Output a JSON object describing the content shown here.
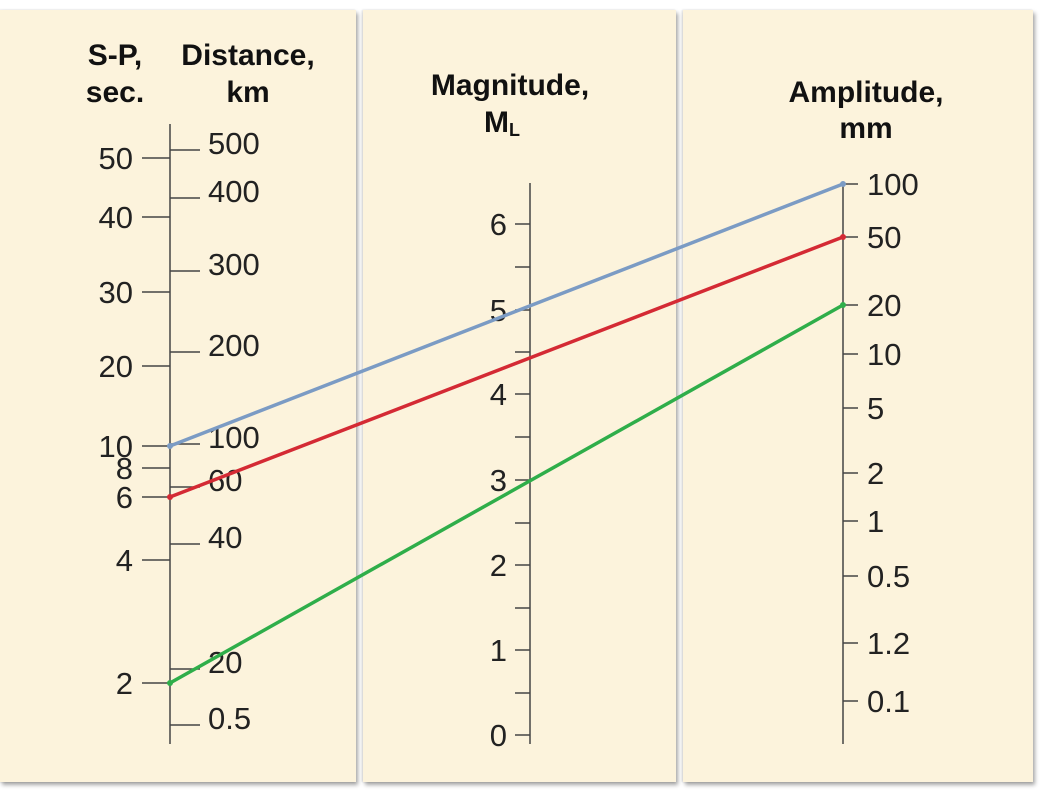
{
  "headers": {
    "sp": [
      "S-P,",
      "sec."
    ],
    "distance": [
      "Distance,",
      "km"
    ],
    "magnitude": [
      "Magnitude,",
      "M",
      "L"
    ],
    "amplitude": [
      "Amplitude,",
      "mm"
    ]
  },
  "scales": {
    "sp": [
      "50",
      "40",
      "30",
      "20",
      "10",
      "8",
      "6",
      "4",
      "2"
    ],
    "distance": [
      "500",
      "400",
      "300",
      "200",
      "100",
      "60",
      "40",
      "20",
      "0.5"
    ],
    "magnitude": [
      "6",
      "5",
      "4",
      "3",
      "2",
      "1",
      "0"
    ],
    "amplitude": [
      "100",
      "50",
      "20",
      "10",
      "5",
      "2",
      "1",
      "0.5",
      "1.2",
      "0.1"
    ]
  },
  "lines": [
    {
      "name": "blue-line",
      "color": "#7b9bc4",
      "sp_sec": 10,
      "amplitude_mm": 100
    },
    {
      "name": "red-line",
      "color": "#d42a34",
      "sp_sec": 6,
      "amplitude_mm": 50
    },
    {
      "name": "green-line",
      "color": "#2fae4a",
      "sp_sec": 2,
      "amplitude_mm": 20
    }
  ],
  "colors": {
    "panel": "#fcf3dc",
    "axis": "#444444",
    "text": "#222222"
  }
}
